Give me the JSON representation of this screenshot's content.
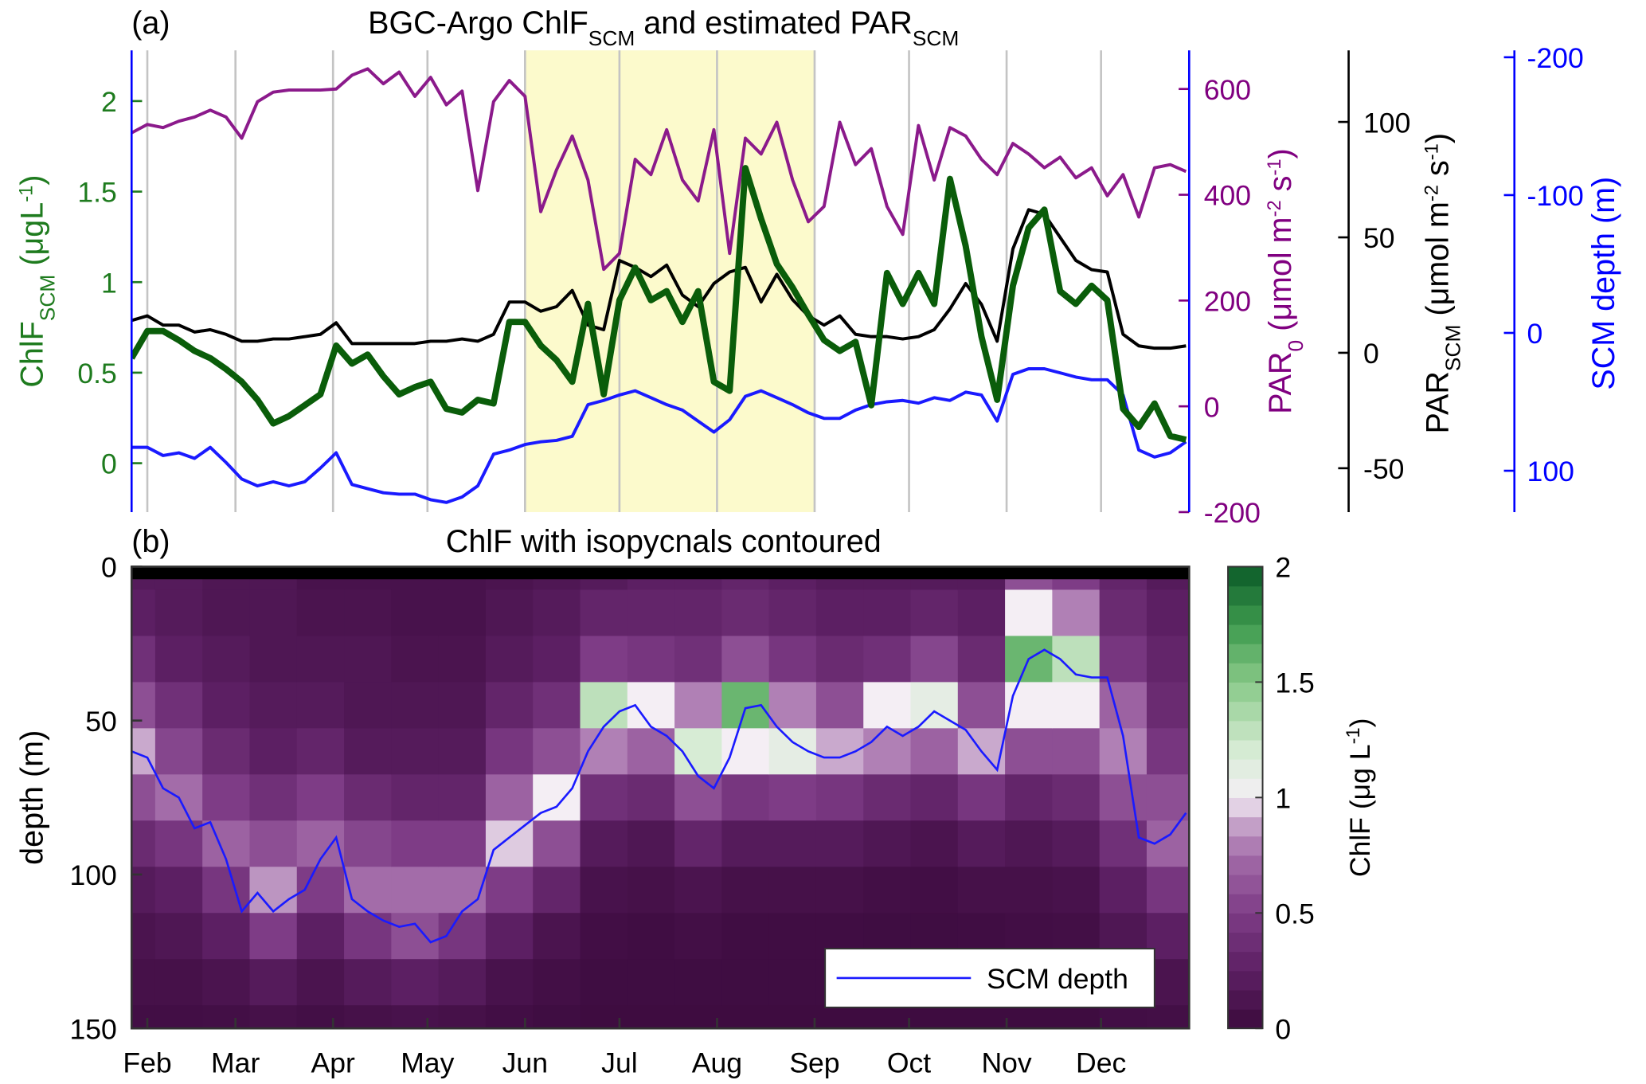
{
  "chart_data": [
    {
      "type": "line",
      "label": "(a)",
      "title": [
        "BGC-Argo ChlF",
        "SCM",
        " and estimated PAR",
        "SCM"
      ],
      "x": [
        27,
        32,
        37,
        42,
        47,
        52,
        57,
        62,
        67,
        72,
        77,
        82,
        87,
        92,
        97,
        102,
        107,
        112,
        117,
        122,
        127,
        132,
        137,
        142,
        147,
        152,
        157,
        162,
        167,
        172,
        177,
        182,
        187,
        192,
        197,
        202,
        207,
        212,
        217,
        222,
        227,
        232,
        237,
        242,
        247,
        252,
        257,
        262,
        267,
        272,
        277,
        282,
        287,
        292,
        297,
        302,
        307,
        312,
        317,
        322,
        327,
        332,
        337,
        342,
        347,
        352,
        357,
        362
      ],
      "xlim": [
        27,
        363
      ],
      "xticks": [
        32,
        60,
        91,
        121,
        152,
        182,
        213,
        244,
        274,
        305,
        335
      ],
      "grid": true,
      "shade": [
        152,
        244
      ],
      "shade_color": "#fcfacc",
      "ylim": [
        -0.27,
        2.28
      ],
      "yticks": [
        0,
        0.5,
        1,
        1.5,
        2
      ],
      "ycolor": "#1e7b1e",
      "ylabel": [
        "ChlF",
        "SCM",
        " (μgL",
        "-1",
        ")"
      ],
      "y2lim": [
        -200,
        673
      ],
      "y2ticks": [
        -200,
        0,
        200,
        400,
        600
      ],
      "y2color": "#800080",
      "y2label": [
        "PAR",
        "0",
        " (μmol m",
        "-2",
        " s",
        "-1",
        ")"
      ],
      "y3lim": [
        -69,
        131
      ],
      "y3ticks": [
        -50,
        0,
        50,
        100
      ],
      "y3color": "#000000",
      "y3label": [
        "PAR",
        "SCM",
        " (μmol m",
        "-2",
        " s",
        "-1",
        ")"
      ],
      "y4lim": [
        130,
        -205
      ],
      "y4ticks": [
        -200,
        -100,
        0,
        100
      ],
      "y4color": "#0000ff",
      "y4label": "SCM depth (m)",
      "series": [
        {
          "axis": "y2",
          "color": "#8b1a8b",
          "line_width": 3,
          "values": [
            517,
            533,
            527,
            539,
            547,
            560,
            547,
            507,
            576,
            594,
            598,
            598,
            598,
            600,
            626,
            638,
            610,
            632,
            586,
            622,
            570,
            596,
            408,
            576,
            616,
            586,
            368,
            447,
            511,
            428,
            259,
            289,
            467,
            438,
            523,
            428,
            388,
            523,
            289,
            507,
            477,
            537,
            428,
            349,
            378,
            537,
            457,
            487,
            378,
            325,
            531,
            428,
            527,
            511,
            467,
            438,
            497,
            477,
            451,
            471,
            432,
            451,
            398,
            438,
            358,
            451,
            457,
            444
          ]
        },
        {
          "axis": "y4",
          "color": "#1a1aff",
          "line_width": 3,
          "values": [
            83,
            83,
            89,
            87,
            91,
            83,
            94,
            106,
            111,
            108,
            111,
            108,
            98,
            87,
            110,
            113,
            116,
            117,
            117,
            121,
            123,
            119,
            111,
            88,
            85,
            81,
            79,
            78,
            75,
            52,
            49,
            45,
            42,
            47,
            52,
            56,
            64,
            72,
            63,
            46,
            42,
            47,
            52,
            58,
            62,
            62,
            56,
            52,
            50,
            49,
            51,
            47,
            49,
            43,
            45,
            64,
            30,
            26,
            26,
            29,
            32,
            34,
            34,
            45,
            85,
            90,
            87,
            79
          ]
        },
        {
          "axis": "y3",
          "color": "#000000",
          "line_width": 3,
          "values": [
            14,
            16,
            12,
            12,
            9,
            10,
            8,
            5,
            5,
            6,
            6,
            7,
            8,
            13,
            4,
            4,
            4,
            4,
            4,
            5,
            5,
            6,
            5,
            8,
            22,
            22,
            18,
            20,
            27,
            12,
            10,
            40,
            37,
            33,
            38,
            25,
            20,
            30,
            35,
            37,
            22,
            34,
            23,
            16,
            12,
            16,
            8,
            7,
            7,
            6,
            7,
            10,
            19,
            30,
            21,
            5,
            45,
            62,
            60,
            50,
            40,
            36,
            35,
            8,
            3,
            2,
            2,
            3
          ]
        },
        {
          "axis": "y",
          "color": "#0a5d0a",
          "line_width": 6,
          "values": [
            0.58,
            0.73,
            0.73,
            0.68,
            0.62,
            0.58,
            0.52,
            0.45,
            0.35,
            0.22,
            0.26,
            0.32,
            0.38,
            0.65,
            0.55,
            0.6,
            0.48,
            0.38,
            0.42,
            0.45,
            0.3,
            0.28,
            0.35,
            0.33,
            0.78,
            0.78,
            0.65,
            0.57,
            0.45,
            0.88,
            0.38,
            0.9,
            1.08,
            0.9,
            0.95,
            0.78,
            0.95,
            0.45,
            0.4,
            1.63,
            1.35,
            1.1,
            0.97,
            0.82,
            0.68,
            0.62,
            0.67,
            0.32,
            1.05,
            0.88,
            1.05,
            0.88,
            1.57,
            1.2,
            0.7,
            0.35,
            0.98,
            1.3,
            1.4,
            0.95,
            0.88,
            0.98,
            0.9,
            0.3,
            0.2,
            0.33,
            0.15,
            0.13
          ]
        }
      ]
    },
    {
      "type": "heatmap",
      "label": "(b)",
      "title": "ChlF with isopycnals contoured",
      "x": [
        27,
        42,
        57,
        72,
        87,
        102,
        117,
        132,
        147,
        162,
        177,
        192,
        207,
        222,
        237,
        252,
        267,
        282,
        297,
        312,
        327,
        342,
        357
      ],
      "y": [
        0,
        15,
        30,
        45,
        60,
        75,
        90,
        105,
        120,
        135,
        150
      ],
      "z": [
        [
          0.2,
          0.25,
          0.4,
          0.6,
          0.9,
          0.6,
          0.35,
          0.2,
          0.12,
          0.08,
          0.05
        ],
        [
          0.2,
          0.2,
          0.25,
          0.4,
          0.55,
          0.75,
          0.45,
          0.25,
          0.15,
          0.08,
          0.05
        ],
        [
          0.15,
          0.15,
          0.2,
          0.25,
          0.35,
          0.5,
          0.7,
          0.45,
          0.25,
          0.12,
          0.06
        ],
        [
          0.15,
          0.15,
          0.15,
          0.2,
          0.25,
          0.4,
          0.6,
          0.85,
          0.5,
          0.2,
          0.08
        ],
        [
          0.1,
          0.12,
          0.15,
          0.2,
          0.3,
          0.5,
          0.7,
          0.5,
          0.25,
          0.12,
          0.06
        ],
        [
          0.1,
          0.12,
          0.15,
          0.15,
          0.2,
          0.35,
          0.55,
          0.75,
          0.45,
          0.2,
          0.08
        ],
        [
          0.1,
          0.1,
          0.12,
          0.15,
          0.2,
          0.3,
          0.5,
          0.75,
          0.6,
          0.25,
          0.1
        ],
        [
          0.1,
          0.1,
          0.12,
          0.15,
          0.2,
          0.3,
          0.5,
          0.75,
          0.45,
          0.2,
          0.08
        ],
        [
          0.12,
          0.15,
          0.2,
          0.3,
          0.45,
          0.7,
          0.95,
          0.5,
          0.25,
          0.1,
          0.05
        ],
        [
          0.15,
          0.2,
          0.25,
          0.4,
          0.6,
          1.0,
          0.6,
          0.3,
          0.12,
          0.06,
          0.03
        ],
        [
          0.2,
          0.3,
          0.5,
          1.3,
          0.8,
          0.4,
          0.2,
          0.1,
          0.05,
          0.03,
          0.02
        ],
        [
          0.25,
          0.3,
          0.45,
          1.0,
          0.7,
          0.35,
          0.15,
          0.08,
          0.04,
          0.03,
          0.02
        ],
        [
          0.25,
          0.3,
          0.4,
          0.8,
          1.2,
          0.6,
          0.3,
          0.12,
          0.06,
          0.03,
          0.02
        ],
        [
          0.3,
          0.35,
          0.6,
          1.6,
          1.0,
          0.45,
          0.2,
          0.08,
          0.04,
          0.03,
          0.02
        ],
        [
          0.25,
          0.3,
          0.45,
          0.8,
          1.1,
          0.5,
          0.2,
          0.08,
          0.04,
          0.03,
          0.02
        ],
        [
          0.2,
          0.25,
          0.35,
          0.6,
          0.9,
          0.45,
          0.2,
          0.08,
          0.04,
          0.03,
          0.02
        ],
        [
          0.2,
          0.25,
          0.4,
          1.0,
          0.8,
          0.35,
          0.15,
          0.06,
          0.03,
          0.02,
          0.02
        ],
        [
          0.2,
          0.3,
          0.55,
          1.1,
          0.7,
          0.3,
          0.12,
          0.05,
          0.03,
          0.02,
          0.02
        ],
        [
          0.2,
          0.25,
          0.35,
          0.6,
          0.9,
          0.45,
          0.2,
          0.08,
          0.04,
          0.03,
          0.02
        ],
        [
          0.6,
          1.0,
          1.6,
          1.0,
          0.6,
          0.3,
          0.15,
          0.08,
          0.05,
          0.03,
          0.02
        ],
        [
          0.5,
          0.8,
          1.3,
          1.0,
          0.6,
          0.35,
          0.2,
          0.1,
          0.06,
          0.04,
          0.02
        ],
        [
          0.3,
          0.35,
          0.45,
          0.7,
          0.8,
          0.6,
          0.4,
          0.25,
          0.15,
          0.08,
          0.05
        ],
        [
          0.2,
          0.25,
          0.3,
          0.35,
          0.45,
          0.6,
          0.7,
          0.45,
          0.25,
          0.12,
          0.06
        ]
      ],
      "xlim": [
        27,
        363
      ],
      "xticks": [
        {
          "value": 32,
          "label": "Feb"
        },
        {
          "value": 60,
          "label": "Mar"
        },
        {
          "value": 91,
          "label": "Apr"
        },
        {
          "value": 121,
          "label": "May"
        },
        {
          "value": 152,
          "label": "Jun"
        },
        {
          "value": 182,
          "label": "Jul"
        },
        {
          "value": 213,
          "label": "Aug"
        },
        {
          "value": 244,
          "label": "Sep"
        },
        {
          "value": 274,
          "label": "Oct"
        },
        {
          "value": 305,
          "label": "Nov"
        },
        {
          "value": 335,
          "label": "Dec"
        }
      ],
      "ylim": [
        150,
        0
      ],
      "yticks": [
        0,
        50,
        100,
        150
      ],
      "ylabel": "depth (m)",
      "clim": [
        0,
        2
      ],
      "cticks": [
        0,
        0.5,
        1,
        1.5,
        2
      ],
      "clabel": [
        "ChlF (μg L",
        "-1",
        ")"
      ],
      "series": [
        {
          "name": "SCM depth",
          "color": "#1a1aff",
          "line_width": 2,
          "x": [
            27,
            32,
            37,
            42,
            47,
            52,
            57,
            62,
            67,
            72,
            77,
            82,
            87,
            92,
            97,
            102,
            107,
            112,
            117,
            122,
            127,
            132,
            137,
            142,
            147,
            152,
            157,
            162,
            167,
            172,
            177,
            182,
            187,
            192,
            197,
            202,
            207,
            212,
            217,
            222,
            227,
            232,
            237,
            242,
            247,
            252,
            257,
            262,
            267,
            272,
            277,
            282,
            287,
            292,
            297,
            302,
            307,
            312,
            317,
            322,
            327,
            332,
            337,
            342,
            347,
            352,
            357,
            362
          ],
          "values": [
            60,
            62,
            72,
            75,
            85,
            83,
            95,
            112,
            106,
            112,
            108,
            105,
            95,
            88,
            108,
            112,
            115,
            117,
            116,
            122,
            120,
            112,
            108,
            92,
            88,
            84,
            80,
            78,
            72,
            60,
            52,
            47,
            45,
            52,
            55,
            60,
            68,
            72,
            62,
            46,
            45,
            52,
            57,
            60,
            62,
            62,
            60,
            57,
            52,
            55,
            52,
            47,
            50,
            53,
            60,
            66,
            42,
            30,
            27,
            30,
            35,
            36,
            36,
            55,
            88,
            90,
            87,
            80
          ]
        }
      ]
    }
  ]
}
